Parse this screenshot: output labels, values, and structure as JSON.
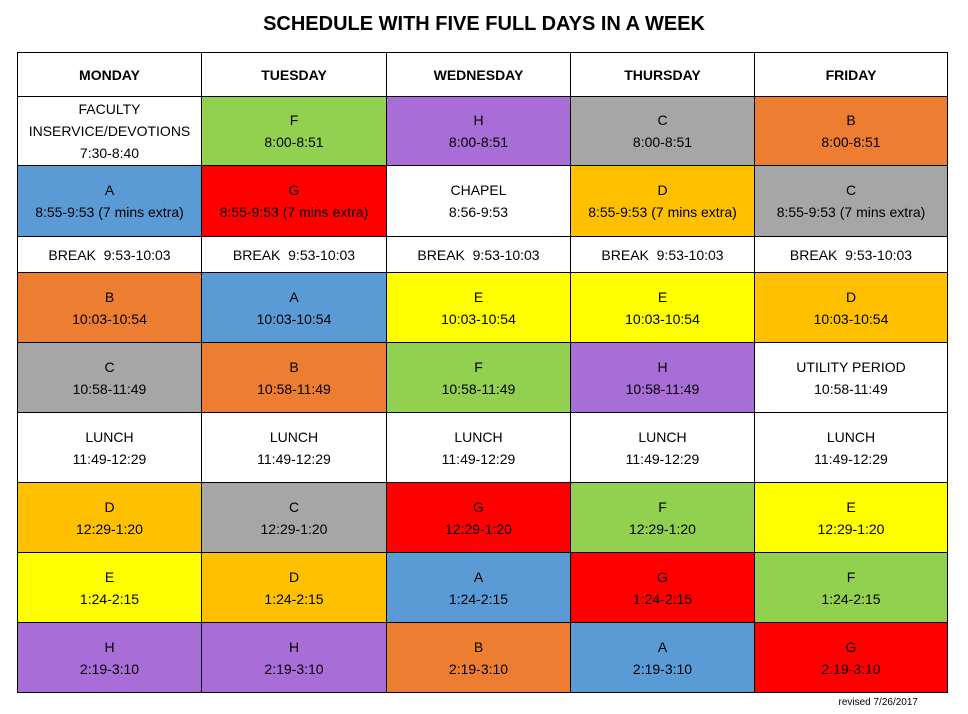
{
  "title": "SCHEDULE WITH FIVE FULL DAYS IN A WEEK",
  "palette": {
    "white": "#ffffff",
    "green": "#92d050",
    "purple": "#a86dd6",
    "gray": "#a6a6a6",
    "orange": "#ed7d31",
    "blue": "#5b9bd5",
    "red": "#ff0000",
    "gold": "#ffc000",
    "yellow": "#ffff00"
  },
  "days": [
    "MONDAY",
    "TUESDAY",
    "WEDNESDAY",
    "THURSDAY",
    "FRIDAY"
  ],
  "rows": [
    {
      "kind": "period",
      "cells": [
        {
          "label": "FACULTY INSERVICE/DEVOTIONS",
          "time": "7:30-8:40",
          "color": "white"
        },
        {
          "label": "F",
          "time": "8:00-8:51",
          "color": "green"
        },
        {
          "label": "H",
          "time": "8:00-8:51",
          "color": "purple"
        },
        {
          "label": "C",
          "time": "8:00-8:51",
          "color": "gray"
        },
        {
          "label": "B",
          "time": "8:00-8:51",
          "color": "orange"
        }
      ]
    },
    {
      "kind": "period",
      "cells": [
        {
          "label": "A",
          "time": "8:55-9:53 (7 mins extra)",
          "color": "blue"
        },
        {
          "label": "G",
          "time": "8:55-9:53 (7 mins extra)",
          "color": "red"
        },
        {
          "label": "CHAPEL",
          "time": "8:56-9:53",
          "color": "white"
        },
        {
          "label": "D",
          "time": "8:55-9:53 (7 mins extra)",
          "color": "gold"
        },
        {
          "label": "C",
          "time": "8:55-9:53 (7 mins extra)",
          "color": "gray"
        }
      ]
    },
    {
      "kind": "break",
      "cells": [
        {
          "label": "BREAK  9:53-10:03",
          "color": "white"
        },
        {
          "label": "BREAK  9:53-10:03",
          "color": "white"
        },
        {
          "label": "BREAK  9:53-10:03",
          "color": "white"
        },
        {
          "label": "BREAK  9:53-10:03",
          "color": "white"
        },
        {
          "label": "BREAK  9:53-10:03",
          "color": "white"
        }
      ]
    },
    {
      "kind": "period",
      "cells": [
        {
          "label": "B",
          "time": "10:03-10:54",
          "color": "orange"
        },
        {
          "label": "A",
          "time": "10:03-10:54",
          "color": "blue"
        },
        {
          "label": "E",
          "time": "10:03-10:54",
          "color": "yellow"
        },
        {
          "label": "E",
          "time": "10:03-10:54",
          "color": "yellow"
        },
        {
          "label": "D",
          "time": "10:03-10:54",
          "color": "gold"
        }
      ]
    },
    {
      "kind": "period",
      "cells": [
        {
          "label": "C",
          "time": "10:58-11:49",
          "color": "gray"
        },
        {
          "label": "B",
          "time": "10:58-11:49",
          "color": "orange"
        },
        {
          "label": "F",
          "time": "10:58-11:49",
          "color": "green"
        },
        {
          "label": "H",
          "time": "10:58-11:49",
          "color": "purple"
        },
        {
          "label": "UTILITY PERIOD",
          "time": "10:58-11:49",
          "color": "white"
        }
      ]
    },
    {
      "kind": "lunch",
      "cells": [
        {
          "label": "LUNCH",
          "time": "11:49-12:29",
          "color": "white"
        },
        {
          "label": "LUNCH",
          "time": "11:49-12:29",
          "color": "white"
        },
        {
          "label": "LUNCH",
          "time": "11:49-12:29",
          "color": "white"
        },
        {
          "label": "LUNCH",
          "time": "11:49-12:29",
          "color": "white"
        },
        {
          "label": "LUNCH",
          "time": "11:49-12:29",
          "color": "white"
        }
      ]
    },
    {
      "kind": "period",
      "cells": [
        {
          "label": "D",
          "time": "12:29-1:20",
          "color": "gold"
        },
        {
          "label": "C",
          "time": "12:29-1:20",
          "color": "gray"
        },
        {
          "label": "G",
          "time": "12:29-1:20",
          "color": "red"
        },
        {
          "label": "F",
          "time": "12:29-1:20",
          "color": "green"
        },
        {
          "label": "E",
          "time": "12:29-1:20",
          "color": "yellow"
        }
      ]
    },
    {
      "kind": "period",
      "cells": [
        {
          "label": "E",
          "time": "1:24-2:15",
          "color": "yellow"
        },
        {
          "label": "D",
          "time": "1:24-2:15",
          "color": "gold"
        },
        {
          "label": "A",
          "time": "1:24-2:15",
          "color": "blue"
        },
        {
          "label": "G",
          "time": "1:24-2:15",
          "color": "red"
        },
        {
          "label": "F",
          "time": "1:24-2:15",
          "color": "green"
        }
      ]
    },
    {
      "kind": "period",
      "cells": [
        {
          "label": "H",
          "time": "2:19-3:10",
          "color": "purple"
        },
        {
          "label": "H",
          "time": "2:19-3:10",
          "color": "purple"
        },
        {
          "label": "B",
          "time": "2:19-3:10",
          "color": "orange"
        },
        {
          "label": "A",
          "time": "2:19-3:10",
          "color": "blue"
        },
        {
          "label": "G",
          "time": "2:19-3:10",
          "color": "red"
        }
      ]
    }
  ],
  "footer": "revised 7/26/2017"
}
